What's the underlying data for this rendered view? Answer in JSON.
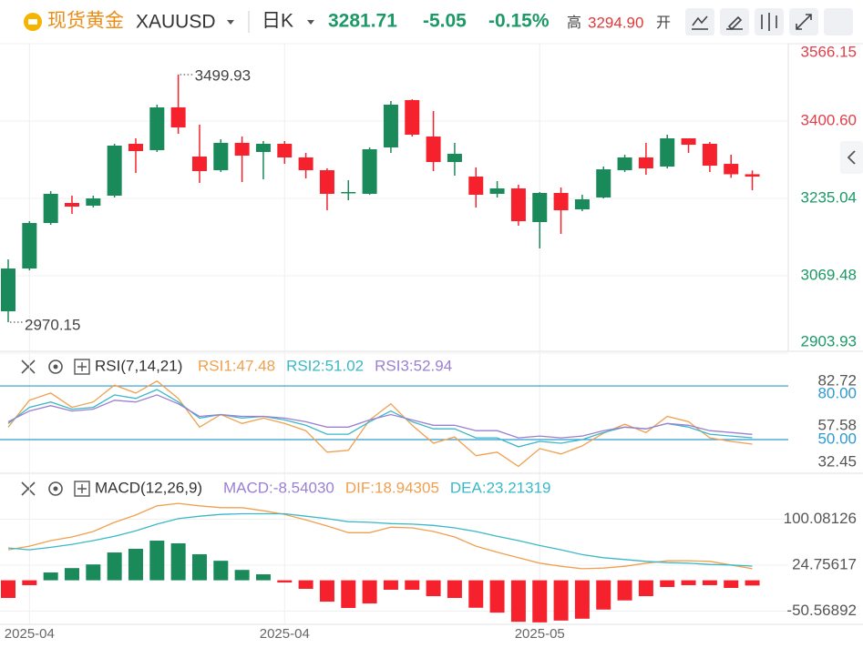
{
  "chart_data": {
    "type": "candlestick",
    "title": "现货黄金",
    "symbol": "XAUUSD",
    "period": "日K",
    "quote": {
      "last": 3281.71,
      "change": -5.05,
      "change_pct": {
        "value": -0.15,
        "label": "-0.15%"
      },
      "high_label": "高",
      "high": {
        "value": 3294.9,
        "label": "3294.90"
      },
      "open_label": "开"
    },
    "categories": [
      null,
      "2025-04",
      null,
      null,
      null,
      null,
      null,
      null,
      null,
      null,
      null,
      null,
      null,
      "2025-04",
      null,
      null,
      null,
      null,
      null,
      null,
      null,
      null,
      null,
      null,
      null,
      "2025-05",
      null,
      null,
      null,
      null,
      null,
      null,
      null,
      null,
      null,
      null
    ],
    "open": [
      2993.4,
      3085.0,
      3182.4,
      3225.3,
      3219.5,
      3240.9,
      3351.9,
      3338.3,
      3429.8,
      3324.6,
      3295.4,
      3353.9,
      3334.4,
      3351.9,
      3322.7,
      3295.4,
      3246.7,
      3244.8,
      3344.1,
      3445.4,
      3367.5,
      3312.9,
      3281.8,
      3244.8,
      3256.4,
      3184.4,
      3246.7,
      3211.6,
      3237.0,
      3295.4,
      3322.7,
      3303.2,
      3363.6,
      3351.9,
      3309.0,
      3286.8
    ],
    "high": [
      3104.5,
      3186.3,
      3250.6,
      3240.9,
      3240.9,
      3351.9,
      3363.6,
      3435.7,
      3499.93,
      3392.8,
      3361.7,
      3367.5,
      3357.8,
      3357.8,
      3332.4,
      3299.3,
      3274.0,
      3344.1,
      3443.4,
      3447.3,
      3422.0,
      3353.9,
      3301.2,
      3272.0,
      3264.3,
      3248.7,
      3258.4,
      3242.8,
      3303.2,
      3328.5,
      3353.9,
      3371.4,
      3363.6,
      3355.8,
      3328.5,
      3294.9
    ],
    "low": [
      2970.15,
      3081.1,
      3178.5,
      3201.9,
      3215.6,
      3237.0,
      3289.6,
      3334.4,
      3373.3,
      3268.2,
      3291.5,
      3270.1,
      3275.9,
      3309.0,
      3277.9,
      3209.7,
      3231.1,
      3242.8,
      3332.4,
      3367.5,
      3293.5,
      3283.7,
      3215.6,
      3237.0,
      3176.6,
      3127.9,
      3159.0,
      3207.8,
      3235.0,
      3291.5,
      3285.6,
      3299.3,
      3332.4,
      3291.5,
      3279.0,
      3252.5
    ],
    "close": [
      3085.0,
      3182.4,
      3244.8,
      3217.5,
      3235.0,
      3348.0,
      3336.3,
      3429.8,
      3387.0,
      3293.5,
      3353.9,
      3326.6,
      3351.9,
      3322.7,
      3295.4,
      3244.8,
      3248.7,
      3340.2,
      3435.7,
      3371.4,
      3312.9,
      3330.5,
      3242.8,
      3256.4,
      3186.3,
      3246.7,
      3209.7,
      3233.1,
      3297.3,
      3322.7,
      3299.3,
      3363.6,
      3349.9,
      3305.1,
      3286.76,
      3281.71
    ],
    "up_color": "#1b8a5a",
    "down_color": "#f5222d",
    "ylim": [
      2903.93,
      3566.15
    ],
    "yticks": [
      2903.93,
      3069.48,
      3235.04,
      {
        "value": 3400.6,
        "label": "3400.60"
      },
      3566.15
    ],
    "grid": true,
    "panels": [
      {
        "type": "line",
        "title": "RSI(7,14,21)",
        "ylim": [
          31.2,
          84.6
        ],
        "yticks": [
          32.45,
          {
            "value": 50,
            "label": "50.00"
          },
          57.58,
          {
            "value": 80,
            "label": "80.00"
          },
          82.72
        ],
        "levels": [
          80,
          50
        ],
        "level_color": "#2e9ad0",
        "series": [
          {
            "name": "RSI1:47.48",
            "color": "#f0a04e",
            "values": [
              57,
              72,
              76,
              68,
              71,
              80.5,
              76,
              82.72,
              73,
              57,
              64,
              59,
              62,
              59,
              55,
              43,
              44,
              61,
              70,
              58,
              48,
              51.5,
              41,
              43,
              35,
              45,
              42,
              46.5,
              53.6,
              58.6,
              54,
              63,
              60,
              51,
              49,
              47.48
            ]
          },
          {
            "name": "RSI2:51.02",
            "color": "#3bb8c8",
            "values": [
              59,
              68,
              71,
              67,
              68,
              75,
              73,
              78,
              71,
              62,
              64,
              62,
              63,
              61,
              58,
              53,
              53,
              60,
              66,
              60,
              56,
              56,
              51,
              51,
              46,
              49,
              48,
              50,
              54,
              57,
              56,
              59,
              57,
              53,
              52,
              51.02
            ]
          },
          {
            "name": "RSI3:52.94",
            "color": "#9b80d2",
            "values": [
              60,
              66,
              69,
              66,
              67,
              72,
              71,
              75,
              70,
              63,
              64,
              63,
              63,
              62,
              60,
              57,
              57,
              61,
              64,
              61,
              58,
              58,
              55,
              55,
              51,
              52,
              51,
              52,
              55,
              57,
              56,
              59,
              58,
              55,
              54,
              52.94
            ]
          }
        ]
      },
      {
        "type": "macd",
        "title": "MACD(12,26,9)",
        "ylim": [
          -72.2,
          127.7
        ],
        "yticks": [
          -50.56892,
          24.75617,
          100.08126
        ],
        "bars": {
          "name": "MACD:-8.54030",
          "color": "#9b80d2",
          "values": [
            -29,
            -8,
            12.8,
            20,
            26,
            45.6,
            51.6,
            65,
            60.6,
            42.7,
            32,
            17,
            9.8,
            -3.6,
            -14,
            -35,
            -45.4,
            -38,
            -15.5,
            -15.5,
            -26,
            -29,
            -45,
            -53,
            -68,
            -69,
            -66,
            -63,
            -48,
            -33,
            -26,
            -11,
            -8,
            -8,
            -12.5,
            -8.5403
          ]
        },
        "series": [
          {
            "name": "DIF:18.94305",
            "color": "#f0a04e",
            "values": [
              50,
              56,
              65,
              71,
              80,
              95,
              107,
              122,
              126,
              122,
              119,
              119,
              114,
              108,
              99,
              89,
              78,
              78,
              87,
              86,
              80,
              71,
              56,
              46,
              37,
              28,
              23,
              19,
              20,
              23,
              28,
              32,
              32,
              31,
              25,
              18.94305
            ]
          },
          {
            "name": "DEA:23.21319",
            "color": "#3bb8c8",
            "values": [
              53,
              50,
              54,
              59,
              65,
              72,
              81,
              92,
              101,
              105,
              108,
              109,
              109,
              109,
              105,
              101,
              96,
              95,
              93,
              92,
              90,
              86,
              80,
              72,
              65,
              57,
              50,
              42,
              37,
              34,
              31,
              29,
              28,
              26,
              25,
              23.21319
            ]
          }
        ]
      }
    ]
  }
}
